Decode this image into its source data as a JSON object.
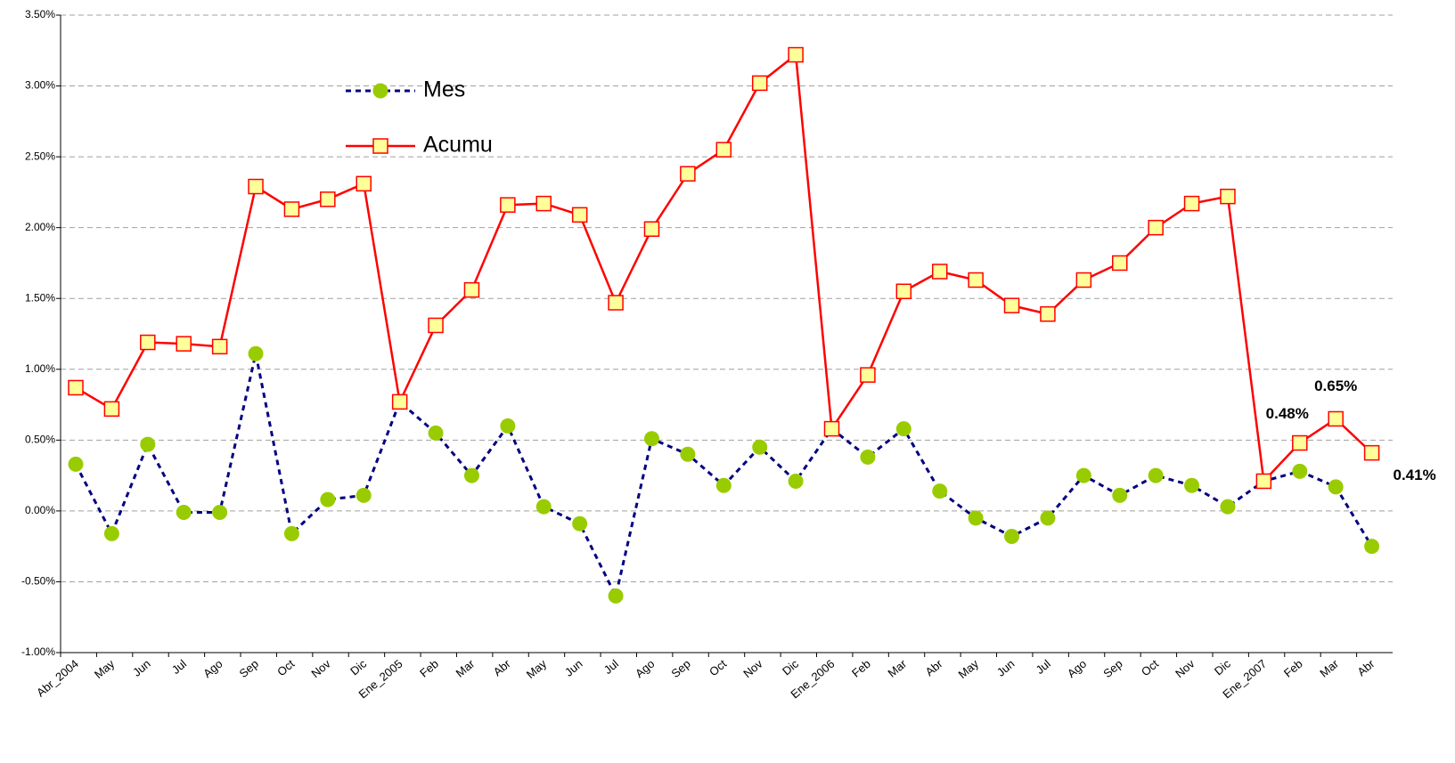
{
  "chart_data": {
    "type": "line",
    "categories": [
      "Abr_2004",
      "May",
      "Jun",
      "Jul",
      "Ago",
      "Sep",
      "Oct",
      "Nov",
      "Dic",
      "Ene_2005",
      "Feb",
      "Mar",
      "Abr",
      "May",
      "Jun",
      "Jul",
      "Ago",
      "Sep",
      "Oct",
      "Nov",
      "Dic",
      "Ene_2006",
      "Feb",
      "Mar",
      "Abr",
      "May",
      "Jun",
      "Jul",
      "Ago",
      "Sep",
      "Oct",
      "Nov",
      "Dic",
      "Ene_2007",
      "Feb",
      "Mar",
      "Abr"
    ],
    "series": [
      {
        "name": "Mes",
        "color": "#000080",
        "marker_color": "#99cc00",
        "values": [
          0.33,
          -0.16,
          0.47,
          -0.01,
          -0.01,
          1.11,
          -0.16,
          0.08,
          0.11,
          0.77,
          0.55,
          0.25,
          0.6,
          0.03,
          -0.09,
          -0.6,
          0.51,
          0.4,
          0.18,
          0.45,
          0.21,
          0.58,
          0.38,
          0.58,
          0.14,
          -0.05,
          -0.18,
          -0.05,
          0.25,
          0.11,
          0.25,
          0.18,
          0.03,
          0.21,
          0.28,
          0.17,
          -0.25
        ]
      },
      {
        "name": "Acumu",
        "color": "#ff0000",
        "marker_color": "#ffff99",
        "values": [
          0.87,
          0.72,
          1.19,
          1.18,
          1.16,
          2.29,
          2.13,
          2.2,
          2.31,
          0.77,
          1.31,
          1.56,
          2.16,
          2.17,
          2.09,
          1.47,
          1.99,
          2.38,
          2.55,
          3.02,
          3.22,
          0.58,
          0.96,
          1.55,
          1.69,
          1.63,
          1.45,
          1.39,
          1.63,
          1.75,
          2.0,
          2.17,
          2.22,
          0.21,
          0.48,
          0.65,
          0.41
        ],
        "value_labels": [
          null,
          null,
          null,
          null,
          null,
          null,
          null,
          null,
          null,
          null,
          null,
          null,
          null,
          null,
          null,
          null,
          null,
          null,
          null,
          null,
          null,
          null,
          null,
          null,
          null,
          null,
          null,
          null,
          null,
          null,
          null,
          null,
          null,
          null,
          "0.48%",
          "0.65%",
          "0.41%"
        ]
      }
    ],
    "ylim": [
      -1.0,
      3.5
    ],
    "yticks": [
      {
        "value": -1.0,
        "label": "-1.00%"
      },
      {
        "value": -0.5,
        "label": "-0.50%"
      },
      {
        "value": 0.0,
        "label": "0.00%"
      },
      {
        "value": 0.5,
        "label": "0.50%"
      },
      {
        "value": 1.0,
        "label": "1.00%"
      },
      {
        "value": 1.5,
        "label": "1.50%"
      },
      {
        "value": 2.0,
        "label": "2.00%"
      },
      {
        "value": 2.5,
        "label": "2.50%"
      },
      {
        "value": 3.0,
        "label": "3.00%"
      },
      {
        "value": 3.5,
        "label": "3.50%"
      }
    ],
    "grid": true
  }
}
